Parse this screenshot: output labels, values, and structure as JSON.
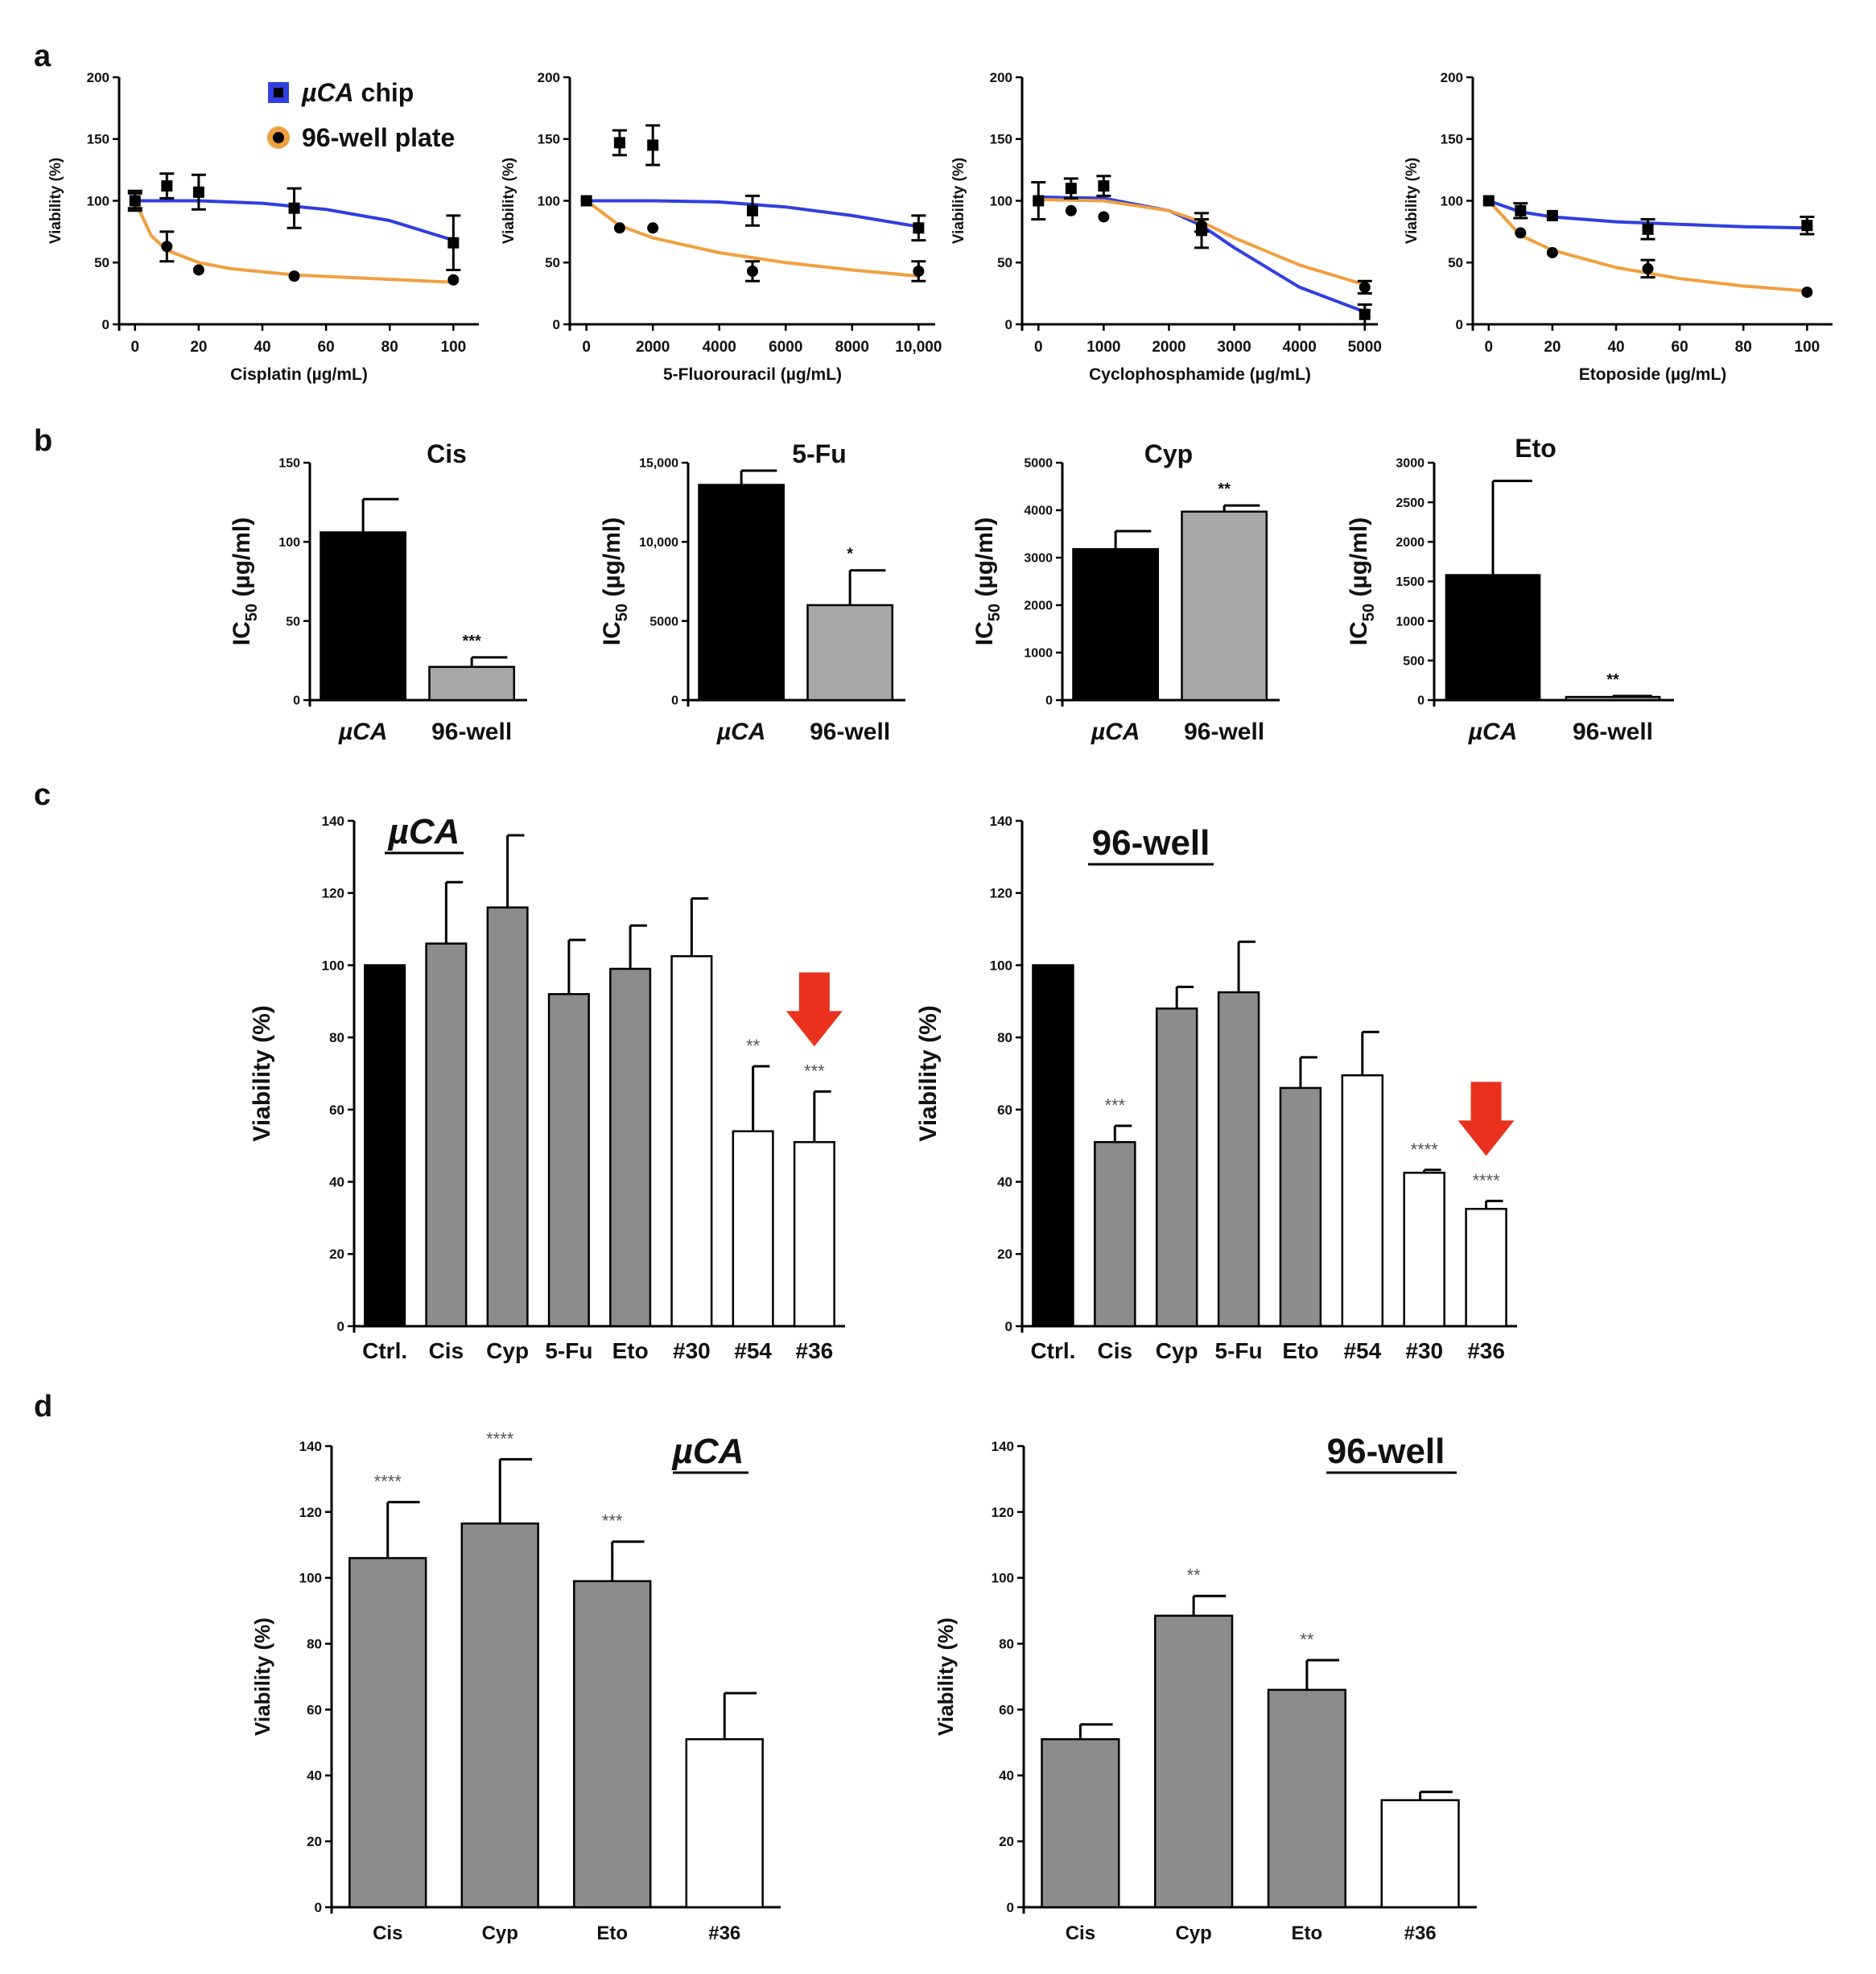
{
  "panel_letters": [
    "a",
    "b",
    "c",
    "d"
  ],
  "colors": {
    "chip": "#2f3fe0",
    "plate": "#f0a040",
    "black": "#000000",
    "gray": "#8c8c8c",
    "lightgray": "#a8a8a8",
    "white": "#ffffff",
    "arrow": "#e8321e",
    "axis": "#000000"
  },
  "legend": {
    "items": [
      {
        "prefix": "µCA",
        "suffix": " chip",
        "marker": "square",
        "color": "#2f3fe0"
      },
      {
        "prefix": "",
        "suffix": "96-well plate",
        "marker": "circle",
        "color": "#f0a040"
      }
    ]
  },
  "chart_data": [
    {
      "panel": "a",
      "type": "scatter",
      "id": "a1",
      "xlabel": "Cisplatin (µg/mL)",
      "ylabel": "Viability (%)",
      "xlim": [
        -5,
        108
      ],
      "ylim": [
        0,
        200
      ],
      "xticks": [
        0,
        20,
        40,
        60,
        80,
        100
      ],
      "xtick_labels": [
        "0",
        "20",
        "40",
        "60",
        "80",
        "100"
      ],
      "yticks": [
        0,
        50,
        100,
        150,
        200
      ],
      "series": [
        {
          "name": "µCA chip",
          "color": "#2f3fe0",
          "marker": "square",
          "x": [
            0,
            10,
            20,
            50,
            100
          ],
          "y": [
            100,
            112,
            107,
            94,
            66
          ],
          "err": [
            8,
            10,
            14,
            16,
            22
          ],
          "fit": [
            [
              0,
              100
            ],
            [
              20,
              100
            ],
            [
              40,
              98
            ],
            [
              60,
              93
            ],
            [
              80,
              84
            ],
            [
              100,
              68
            ]
          ]
        },
        {
          "name": "96-well plate",
          "color": "#f0a040",
          "marker": "circle",
          "x": [
            0,
            10,
            20,
            50,
            100
          ],
          "y": [
            100,
            63,
            44,
            39,
            36
          ],
          "err": [
            6,
            12,
            2,
            2,
            2
          ],
          "fit": [
            [
              0,
              100
            ],
            [
              5,
              72
            ],
            [
              10,
              60
            ],
            [
              20,
              50
            ],
            [
              30,
              45
            ],
            [
              50,
              40
            ],
            [
              75,
              37
            ],
            [
              100,
              34
            ]
          ]
        }
      ]
    },
    {
      "panel": "a",
      "type": "scatter",
      "id": "a2",
      "xlabel": "5-Fluorouracil (µg/mL)",
      "ylabel": "Viability (%)",
      "xlim": [
        -500,
        10500
      ],
      "ylim": [
        0,
        200
      ],
      "xticks": [
        0,
        2000,
        4000,
        6000,
        8000,
        10000
      ],
      "xtick_labels": [
        "0",
        "2000",
        "4000",
        "6000",
        "8000",
        "10,000"
      ],
      "yticks": [
        0,
        50,
        100,
        150,
        200
      ],
      "series": [
        {
          "name": "µCA chip",
          "color": "#2f3fe0",
          "marker": "square",
          "x": [
            0,
            1000,
            2000,
            5000,
            10000
          ],
          "y": [
            100,
            147,
            145,
            92,
            78
          ],
          "err": [
            2,
            10,
            16,
            12,
            10
          ],
          "fit": [
            [
              0,
              100
            ],
            [
              2000,
              100
            ],
            [
              4000,
              99
            ],
            [
              6000,
              95
            ],
            [
              8000,
              88
            ],
            [
              10000,
              79
            ]
          ]
        },
        {
          "name": "96-well plate",
          "color": "#f0a040",
          "marker": "circle",
          "x": [
            0,
            1000,
            2000,
            5000,
            10000
          ],
          "y": [
            100,
            78,
            78,
            43,
            43
          ],
          "err": [
            2,
            2,
            2,
            8,
            8
          ],
          "fit": [
            [
              0,
              100
            ],
            [
              1000,
              80
            ],
            [
              2000,
              70
            ],
            [
              4000,
              58
            ],
            [
              6000,
              50
            ],
            [
              8000,
              44
            ],
            [
              10000,
              39
            ]
          ]
        }
      ]
    },
    {
      "panel": "a",
      "type": "scatter",
      "id": "a3",
      "xlabel": "Cyclophosphamide (µg/mL)",
      "ylabel": "Viability (%)",
      "xlim": [
        -250,
        5200
      ],
      "ylim": [
        0,
        200
      ],
      "xticks": [
        0,
        1000,
        2000,
        3000,
        4000,
        5000
      ],
      "xtick_labels": [
        "0",
        "1000",
        "2000",
        "3000",
        "4000",
        "5000"
      ],
      "yticks": [
        0,
        50,
        100,
        150,
        200
      ],
      "series": [
        {
          "name": "µCA chip",
          "color": "#2f3fe0",
          "marker": "square",
          "x": [
            0,
            500,
            1000,
            2500,
            5000
          ],
          "y": [
            100,
            110,
            112,
            76,
            8
          ],
          "err": [
            15,
            8,
            8,
            14,
            8
          ],
          "fit": [
            [
              0,
              103
            ],
            [
              1000,
              102
            ],
            [
              2000,
              92
            ],
            [
              2500,
              80
            ],
            [
              3000,
              62
            ],
            [
              4000,
              30
            ],
            [
              5000,
              10
            ]
          ]
        },
        {
          "name": "96-well plate",
          "color": "#f0a040",
          "marker": "circle",
          "x": [
            0,
            500,
            1000,
            2500,
            5000
          ],
          "y": [
            100,
            92,
            87,
            80,
            30
          ],
          "err": [
            2,
            2,
            2,
            5,
            5
          ],
          "fit": [
            [
              0,
              101
            ],
            [
              1000,
              100
            ],
            [
              2000,
              92
            ],
            [
              2500,
              83
            ],
            [
              3000,
              70
            ],
            [
              4000,
              48
            ],
            [
              5000,
              32
            ]
          ]
        }
      ]
    },
    {
      "panel": "a",
      "type": "scatter",
      "id": "a4",
      "xlabel": "Etoposide (µg/mL)",
      "ylabel": "Viability (%)",
      "xlim": [
        -5,
        108
      ],
      "ylim": [
        0,
        200
      ],
      "xticks": [
        0,
        20,
        40,
        60,
        80,
        100
      ],
      "xtick_labels": [
        "0",
        "20",
        "40",
        "60",
        "80",
        "100"
      ],
      "yticks": [
        0,
        50,
        100,
        150,
        200
      ],
      "series": [
        {
          "name": "µCA chip",
          "color": "#2f3fe0",
          "marker": "square",
          "x": [
            0,
            10,
            20,
            50,
            100
          ],
          "y": [
            100,
            92,
            88,
            77,
            80
          ],
          "err": [
            2,
            6,
            2,
            8,
            7
          ],
          "fit": [
            [
              0,
              100
            ],
            [
              10,
              91
            ],
            [
              20,
              87
            ],
            [
              40,
              83
            ],
            [
              60,
              81
            ],
            [
              80,
              79
            ],
            [
              100,
              78
            ]
          ]
        },
        {
          "name": "96-well plate",
          "color": "#f0a040",
          "marker": "circle",
          "x": [
            0,
            10,
            20,
            50,
            100
          ],
          "y": [
            100,
            74,
            58,
            45,
            26
          ],
          "err": [
            2,
            2,
            2,
            7,
            2
          ],
          "fit": [
            [
              0,
              100
            ],
            [
              10,
              72
            ],
            [
              20,
              60
            ],
            [
              40,
              46
            ],
            [
              60,
              37
            ],
            [
              80,
              31
            ],
            [
              100,
              27
            ]
          ]
        }
      ]
    },
    {
      "panel": "b",
      "type": "bar",
      "id": "b1",
      "title": "Cis",
      "ylabel": "IC50 (µg/ml)",
      "ylim": [
        0,
        150
      ],
      "yticks": [
        0,
        50,
        100,
        150
      ],
      "ytick_labels": [
        "0",
        "50",
        "100",
        "150"
      ],
      "categories": [
        "µCA",
        "96-well"
      ],
      "italic": [
        true,
        false
      ],
      "values": [
        106,
        21
      ],
      "err": [
        21,
        6
      ],
      "colors": [
        "#000000",
        "#a8a8a8"
      ],
      "sig": [
        "",
        "***"
      ]
    },
    {
      "panel": "b",
      "type": "bar",
      "id": "b2",
      "title": "5-Fu",
      "ylabel": "IC50 (µg/ml)",
      "ylim": [
        0,
        15000
      ],
      "yticks": [
        0,
        5000,
        10000,
        15000
      ],
      "ytick_labels": [
        "0",
        "5000",
        "10,000",
        "15,000"
      ],
      "categories": [
        "µCA",
        "96-well"
      ],
      "italic": [
        true,
        false
      ],
      "values": [
        13600,
        6000
      ],
      "err": [
        900,
        2200
      ],
      "colors": [
        "#000000",
        "#a8a8a8"
      ],
      "sig": [
        "",
        "*"
      ]
    },
    {
      "panel": "b",
      "type": "bar",
      "id": "b3",
      "title": "Cyp",
      "ylabel": "IC50 (µg/ml)",
      "ylim": [
        0,
        5000
      ],
      "yticks": [
        0,
        1000,
        2000,
        3000,
        4000,
        5000
      ],
      "ytick_labels": [
        "0",
        "1000",
        "2000",
        "3000",
        "4000",
        "5000"
      ],
      "categories": [
        "µCA",
        "96-well"
      ],
      "italic": [
        true,
        false
      ],
      "values": [
        3180,
        3970
      ],
      "err": [
        380,
        130
      ],
      "colors": [
        "#000000",
        "#a8a8a8"
      ],
      "sig": [
        "",
        "**"
      ]
    },
    {
      "panel": "b",
      "type": "bar",
      "id": "b4",
      "title": "Eto",
      "ylabel": "IC50 (µg/ml)",
      "ylim": [
        0,
        3000
      ],
      "yticks": [
        0,
        500,
        1000,
        1500,
        2000,
        2500,
        3000
      ],
      "ytick_labels": [
        "0",
        "500",
        "1000",
        "1500",
        "2000",
        "2500",
        "3000"
      ],
      "categories": [
        "µCA",
        "96-well"
      ],
      "italic": [
        true,
        false
      ],
      "values": [
        1580,
        40
      ],
      "err": [
        1190,
        12
      ],
      "colors": [
        "#000000",
        "#a8a8a8"
      ],
      "sig": [
        "",
        "**"
      ]
    },
    {
      "panel": "c",
      "type": "bar",
      "id": "c1",
      "title": "µCA",
      "title_italic": true,
      "ylabel": "Viability (%)",
      "ylim": [
        0,
        140
      ],
      "yticks": [
        0,
        20,
        40,
        60,
        80,
        100,
        120,
        140
      ],
      "ytick_labels": [
        "0",
        "20",
        "40",
        "60",
        "80",
        "100",
        "120",
        "140"
      ],
      "categories": [
        "Ctrl.",
        "Cis",
        "Cyp",
        "5-Fu",
        "Eto",
        "#30",
        "#54",
        "#36"
      ],
      "values": [
        100,
        106,
        116,
        92,
        99,
        102.5,
        54,
        51
      ],
      "err": [
        0,
        17,
        20,
        15,
        12,
        16,
        18,
        14
      ],
      "colors": [
        "#000000",
        "#8c8c8c",
        "#8c8c8c",
        "#8c8c8c",
        "#8c8c8c",
        "#ffffff",
        "#ffffff",
        "#ffffff"
      ],
      "sig": [
        "",
        "",
        "",
        "",
        "",
        "",
        "**",
        "***"
      ],
      "arrow_at": 7
    },
    {
      "panel": "c",
      "type": "bar",
      "id": "c2",
      "title": "96-well",
      "title_italic": false,
      "ylabel": "Viability (%)",
      "ylim": [
        0,
        140
      ],
      "yticks": [
        0,
        20,
        40,
        60,
        80,
        100,
        120,
        140
      ],
      "ytick_labels": [
        "0",
        "20",
        "40",
        "60",
        "80",
        "100",
        "120",
        "140"
      ],
      "categories": [
        "Ctrl.",
        "Cis",
        "Cyp",
        "5-Fu",
        "Eto",
        "#54",
        "#30",
        "#36"
      ],
      "values": [
        100,
        51,
        88,
        92.5,
        66,
        69.5,
        42.5,
        32.5
      ],
      "err": [
        0,
        4.5,
        6,
        14,
        8.5,
        12,
        0.8,
        2.2
      ],
      "colors": [
        "#000000",
        "#8c8c8c",
        "#8c8c8c",
        "#8c8c8c",
        "#8c8c8c",
        "#ffffff",
        "#ffffff",
        "#ffffff"
      ],
      "sig": [
        "",
        "***",
        "",
        "",
        "",
        "",
        "****",
        "****"
      ],
      "arrow_at": 7
    },
    {
      "panel": "d",
      "type": "bar",
      "id": "d1",
      "title": "µCA",
      "title_italic": true,
      "ylabel": "Viability (%)",
      "ylim": [
        0,
        140
      ],
      "yticks": [
        0,
        20,
        40,
        60,
        80,
        100,
        120,
        140
      ],
      "ytick_labels": [
        "0",
        "20",
        "40",
        "60",
        "80",
        "100",
        "120",
        "140"
      ],
      "categories": [
        "Cis",
        "Cyp",
        "Eto",
        "#36"
      ],
      "values": [
        106,
        116.5,
        99,
        51
      ],
      "err": [
        17,
        19.5,
        12,
        14
      ],
      "colors": [
        "#8c8c8c",
        "#8c8c8c",
        "#8c8c8c",
        "#ffffff"
      ],
      "sig": [
        "****",
        "****",
        "***",
        ""
      ]
    },
    {
      "panel": "d",
      "type": "bar",
      "id": "d2",
      "title": "96-well",
      "title_italic": false,
      "ylabel": "Viability (%)",
      "ylim": [
        0,
        140
      ],
      "yticks": [
        0,
        20,
        40,
        60,
        80,
        100,
        120,
        140
      ],
      "ytick_labels": [
        "0",
        "20",
        "40",
        "60",
        "80",
        "100",
        "120",
        "140"
      ],
      "categories": [
        "Cis",
        "Cyp",
        "Eto",
        "#36"
      ],
      "values": [
        51,
        88.5,
        66,
        32.5
      ],
      "err": [
        4.5,
        6,
        9,
        2.5
      ],
      "colors": [
        "#8c8c8c",
        "#8c8c8c",
        "#8c8c8c",
        "#ffffff"
      ],
      "sig": [
        "",
        "**",
        "**",
        ""
      ]
    }
  ]
}
